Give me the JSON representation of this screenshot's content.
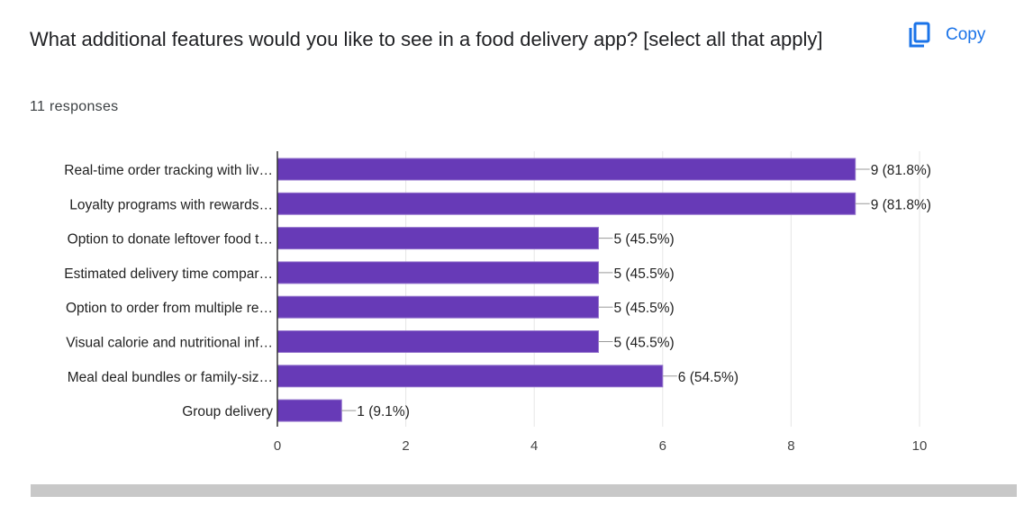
{
  "question": {
    "title": "What additional features would you like to see in a food delivery app? [select all that apply]",
    "responses": "11 responses",
    "copy_label": "Copy",
    "copy_icon": "copy-icon"
  },
  "chart_data": {
    "type": "bar",
    "orientation": "horizontal",
    "categories": [
      "Real-time order tracking with liv…",
      "Loyalty programs with rewards…",
      "Option to donate leftover food t…",
      "Estimated delivery time compar…",
      "Option to order from multiple re…",
      "Visual calorie and nutritional inf…",
      "Meal deal bundles or family-siz…",
      "Group delivery"
    ],
    "values": [
      9,
      9,
      5,
      5,
      5,
      5,
      6,
      1
    ],
    "data_labels": [
      "9 (81.8%)",
      "9 (81.8%)",
      "5 (45.5%)",
      "5 (45.5%)",
      "5 (45.5%)",
      "5 (45.5%)",
      "6 (54.5%)",
      "1 (9.1%)"
    ],
    "xlim": [
      0,
      10
    ],
    "xticks": [
      "0",
      "2",
      "4",
      "6",
      "8",
      "10"
    ],
    "grid": true,
    "bar_color": "#673ab7"
  }
}
